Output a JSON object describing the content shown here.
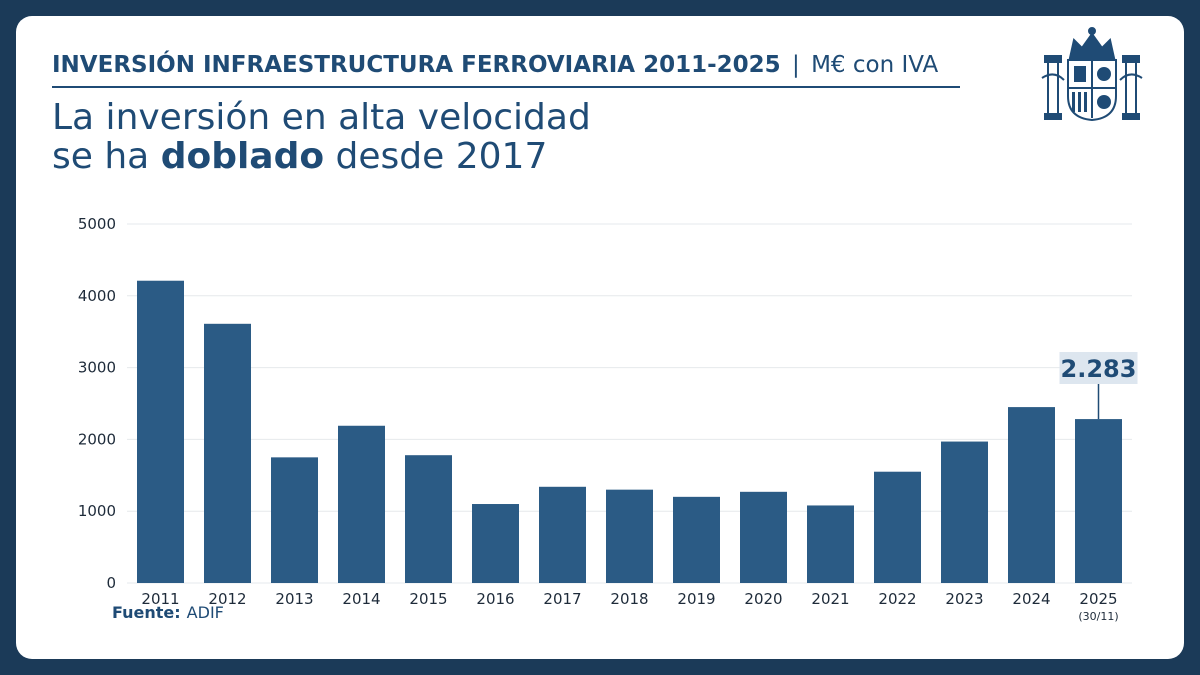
{
  "header": {
    "title": "INVERSIÓN INFRAESTRUCTURA FERROVIARIA 2011-2025",
    "separator": "|",
    "unit": "M€ con IVA"
  },
  "headline": {
    "line1": "La inversión en alta velocidad",
    "line2_pre": "se ha",
    "line2_bold": "doblado",
    "line2_post": "desde 2017"
  },
  "logo": {
    "icon": "spain-coat-of-arms-icon"
  },
  "source": {
    "label": "Fuente:",
    "value": "ADIF"
  },
  "colors": {
    "background": "#1b3a58",
    "card": "#ffffff",
    "bar": "#2b5b85",
    "text": "#1f4b75",
    "callout_bg": "#dde6ef",
    "grid": "#e6e9ec"
  },
  "chart_data": {
    "type": "bar",
    "categories": [
      "2011",
      "2012",
      "2013",
      "2014",
      "2015",
      "2016",
      "2017",
      "2018",
      "2019",
      "2020",
      "2021",
      "2022",
      "2023",
      "2024",
      "2025"
    ],
    "category_notes": {
      "2025": "(30/11)"
    },
    "values": [
      4210,
      3610,
      1750,
      2190,
      1780,
      1100,
      1340,
      1300,
      1200,
      1270,
      1080,
      1550,
      1970,
      2450,
      2283
    ],
    "ylim": [
      0,
      5000
    ],
    "yticks": [
      0,
      1000,
      2000,
      3000,
      4000,
      5000
    ],
    "grid": true,
    "annotation": {
      "category": "2025",
      "label": "2.283"
    }
  }
}
